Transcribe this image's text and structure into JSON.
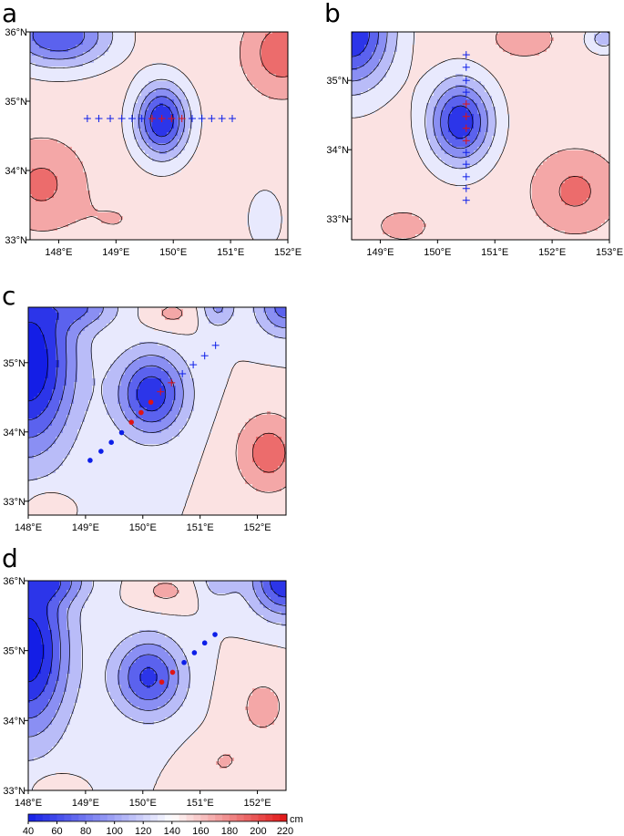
{
  "colors": {
    "blue": "#0c1ee8",
    "red": "#e01414",
    "frame": "#000000"
  },
  "panels": [
    {
      "letter": "a",
      "lon_range": [
        147.5,
        152.0
      ],
      "lat_range": [
        33.0,
        36.0
      ],
      "xticks": [
        {
          "v": 148,
          "label": "148°E"
        },
        {
          "v": 149,
          "label": "149°E"
        },
        {
          "v": 150,
          "label": "150°E"
        },
        {
          "v": 151,
          "label": "151°E"
        },
        {
          "v": 152,
          "label": "152°E"
        }
      ],
      "yticks": [
        {
          "v": 33,
          "label": "33°N"
        },
        {
          "v": 34,
          "label": "34°N"
        },
        {
          "v": 35,
          "label": "35°N"
        },
        {
          "v": 36,
          "label": "36°N"
        }
      ],
      "base_value": 150,
      "features": [
        {
          "lon": 149.8,
          "lat": 34.72,
          "value": 40,
          "rx": 0.45,
          "ry": 0.52
        },
        {
          "lon": 148.0,
          "lat": 35.95,
          "value": 60,
          "rx": 0.9,
          "ry": 0.45
        },
        {
          "lon": 147.7,
          "lat": 33.8,
          "value": 185,
          "rx": 0.7,
          "ry": 0.6
        },
        {
          "lon": 151.9,
          "lat": 35.7,
          "value": 195,
          "rx": 0.6,
          "ry": 0.55
        },
        {
          "lon": 151.6,
          "lat": 33.3,
          "value": 130,
          "rx": 0.35,
          "ry": 0.5
        },
        {
          "lon": 149.0,
          "lat": 33.3,
          "value": 160,
          "rx": 0.6,
          "ry": 0.35
        }
      ],
      "markers": [
        {
          "type": "plus",
          "color": "blue",
          "lon": 148.5,
          "lat": 34.75
        },
        {
          "type": "plus",
          "color": "blue",
          "lon": 148.7,
          "lat": 34.75
        },
        {
          "type": "plus",
          "color": "blue",
          "lon": 148.9,
          "lat": 34.75
        },
        {
          "type": "plus",
          "color": "blue",
          "lon": 149.1,
          "lat": 34.75
        },
        {
          "type": "plus",
          "color": "blue",
          "lon": 149.28,
          "lat": 34.75
        },
        {
          "type": "plus",
          "color": "blue",
          "lon": 149.45,
          "lat": 34.75
        },
        {
          "type": "plus",
          "color": "red",
          "lon": 149.63,
          "lat": 34.75
        },
        {
          "type": "plus",
          "color": "red",
          "lon": 149.8,
          "lat": 34.75
        },
        {
          "type": "plus",
          "color": "red",
          "lon": 149.97,
          "lat": 34.75
        },
        {
          "type": "plus",
          "color": "red",
          "lon": 150.15,
          "lat": 34.75
        },
        {
          "type": "plus",
          "color": "blue",
          "lon": 150.33,
          "lat": 34.75
        },
        {
          "type": "plus",
          "color": "blue",
          "lon": 150.5,
          "lat": 34.75
        },
        {
          "type": "plus",
          "color": "blue",
          "lon": 150.67,
          "lat": 34.75
        },
        {
          "type": "plus",
          "color": "blue",
          "lon": 150.85,
          "lat": 34.75
        },
        {
          "type": "plus",
          "color": "blue",
          "lon": 151.03,
          "lat": 34.75
        }
      ]
    },
    {
      "letter": "b",
      "lon_range": [
        148.5,
        153.0
      ],
      "lat_range": [
        32.7,
        35.7
      ],
      "xticks": [
        {
          "v": 149,
          "label": "149°E"
        },
        {
          "v": 150,
          "label": "150°E"
        },
        {
          "v": 151,
          "label": "151°E"
        },
        {
          "v": 152,
          "label": "152°E"
        },
        {
          "v": 153,
          "label": "153°E"
        }
      ],
      "yticks": [
        {
          "v": 33,
          "label": "33°N"
        },
        {
          "v": 34,
          "label": "34°N"
        },
        {
          "v": 35,
          "label": "35°N"
        }
      ],
      "base_value": 150,
      "features": [
        {
          "lon": 150.4,
          "lat": 34.4,
          "value": 45,
          "rx": 0.55,
          "ry": 0.6
        },
        {
          "lon": 148.5,
          "lat": 35.7,
          "value": 40,
          "rx": 0.7,
          "ry": 0.8
        },
        {
          "lon": 152.9,
          "lat": 35.6,
          "value": 110,
          "rx": 0.3,
          "ry": 0.2
        },
        {
          "lon": 152.4,
          "lat": 33.4,
          "value": 185,
          "rx": 0.7,
          "ry": 0.55
        },
        {
          "lon": 151.5,
          "lat": 35.6,
          "value": 170,
          "rx": 0.6,
          "ry": 0.3
        },
        {
          "lon": 149.4,
          "lat": 32.9,
          "value": 165,
          "rx": 0.6,
          "ry": 0.3
        }
      ],
      "markers": [
        {
          "type": "plus",
          "color": "blue",
          "lon": 150.5,
          "lat": 35.37
        },
        {
          "type": "plus",
          "color": "blue",
          "lon": 150.5,
          "lat": 35.19
        },
        {
          "type": "plus",
          "color": "blue",
          "lon": 150.5,
          "lat": 35.0
        },
        {
          "type": "plus",
          "color": "blue",
          "lon": 150.5,
          "lat": 34.83
        },
        {
          "type": "plus",
          "color": "red",
          "lon": 150.5,
          "lat": 34.66
        },
        {
          "type": "plus",
          "color": "red",
          "lon": 150.5,
          "lat": 34.48
        },
        {
          "type": "plus",
          "color": "red",
          "lon": 150.5,
          "lat": 34.31
        },
        {
          "type": "plus",
          "color": "red",
          "lon": 150.5,
          "lat": 34.13
        },
        {
          "type": "plus",
          "color": "blue",
          "lon": 150.5,
          "lat": 33.96
        },
        {
          "type": "plus",
          "color": "blue",
          "lon": 150.5,
          "lat": 33.79
        },
        {
          "type": "plus",
          "color": "blue",
          "lon": 150.5,
          "lat": 33.61
        },
        {
          "type": "plus",
          "color": "blue",
          "lon": 150.5,
          "lat": 33.44
        },
        {
          "type": "plus",
          "color": "blue",
          "lon": 150.5,
          "lat": 33.27
        }
      ]
    },
    {
      "letter": "c",
      "lon_range": [
        148.0,
        152.5
      ],
      "lat_range": [
        32.8,
        35.8
      ],
      "xticks": [
        {
          "v": 148,
          "label": "148°E"
        },
        {
          "v": 149,
          "label": "149°E"
        },
        {
          "v": 150,
          "label": "150°E"
        },
        {
          "v": 151,
          "label": "151°E"
        },
        {
          "v": 152,
          "label": "152°E"
        }
      ],
      "yticks": [
        {
          "v": 33,
          "label": "33°N"
        },
        {
          "v": 34,
          "label": "34°N"
        },
        {
          "v": 35,
          "label": "35°N"
        }
      ],
      "base_value": 140,
      "features": [
        {
          "lon": 150.15,
          "lat": 34.55,
          "value": 45,
          "rx": 0.6,
          "ry": 0.6
        },
        {
          "lon": 148.0,
          "lat": 35.0,
          "value": 20,
          "rx": 0.8,
          "ry": 1.3
        },
        {
          "lon": 149.0,
          "lat": 35.8,
          "value": 95,
          "rx": 0.6,
          "ry": 0.3
        },
        {
          "lon": 152.5,
          "lat": 35.8,
          "value": 70,
          "rx": 0.5,
          "ry": 0.4
        },
        {
          "lon": 151.3,
          "lat": 35.8,
          "value": 95,
          "rx": 0.3,
          "ry": 0.3
        },
        {
          "lon": 152.2,
          "lat": 33.7,
          "value": 190,
          "rx": 0.6,
          "ry": 0.6
        },
        {
          "lon": 150.5,
          "lat": 35.7,
          "value": 165,
          "rx": 0.5,
          "ry": 0.25
        },
        {
          "lon": 148.3,
          "lat": 32.95,
          "value": 160,
          "rx": 0.4,
          "ry": 0.25
        }
      ],
      "markers": [
        {
          "type": "plus",
          "color": "blue",
          "lon": 151.27,
          "lat": 35.25
        },
        {
          "type": "plus",
          "color": "blue",
          "lon": 151.08,
          "lat": 35.1
        },
        {
          "type": "plus",
          "color": "blue",
          "lon": 150.88,
          "lat": 34.97
        },
        {
          "type": "plus",
          "color": "blue",
          "lon": 150.69,
          "lat": 34.84
        },
        {
          "type": "plus",
          "color": "red",
          "lon": 150.5,
          "lat": 34.71
        },
        {
          "type": "plus",
          "color": "red",
          "lon": 150.31,
          "lat": 34.58
        },
        {
          "type": "dot",
          "color": "red",
          "lon": 150.14,
          "lat": 34.43
        },
        {
          "type": "dot",
          "color": "red",
          "lon": 149.97,
          "lat": 34.28
        },
        {
          "type": "dot",
          "color": "red",
          "lon": 149.8,
          "lat": 34.14
        },
        {
          "type": "dot",
          "color": "blue",
          "lon": 149.63,
          "lat": 33.99
        },
        {
          "type": "dot",
          "color": "blue",
          "lon": 149.45,
          "lat": 33.85
        },
        {
          "type": "dot",
          "color": "blue",
          "lon": 149.27,
          "lat": 33.72
        },
        {
          "type": "dot",
          "color": "blue",
          "lon": 149.08,
          "lat": 33.59
        }
      ]
    },
    {
      "letter": "d",
      "lon_range": [
        148.0,
        152.5
      ],
      "lat_range": [
        33.0,
        36.0
      ],
      "xticks": [
        {
          "v": 148,
          "label": "148°E"
        },
        {
          "v": 149,
          "label": "149°E"
        },
        {
          "v": 150,
          "label": "150°E"
        },
        {
          "v": 151,
          "label": "151°E"
        },
        {
          "v": 152,
          "label": "152°E"
        }
      ],
      "yticks": [
        {
          "v": 33,
          "label": "33°N"
        },
        {
          "v": 34,
          "label": "34°N"
        },
        {
          "v": 35,
          "label": "35°N"
        },
        {
          "v": 36,
          "label": "36°N"
        }
      ],
      "base_value": 140,
      "features": [
        {
          "lon": 150.1,
          "lat": 34.62,
          "value": 55,
          "rx": 0.6,
          "ry": 0.55
        },
        {
          "lon": 148.0,
          "lat": 35.0,
          "value": 25,
          "rx": 0.7,
          "ry": 1.2
        },
        {
          "lon": 148.5,
          "lat": 36.0,
          "value": 90,
          "rx": 0.6,
          "ry": 0.3
        },
        {
          "lon": 152.5,
          "lat": 36.0,
          "value": 40,
          "rx": 0.6,
          "ry": 0.5
        },
        {
          "lon": 151.3,
          "lat": 36.0,
          "value": 110,
          "rx": 0.35,
          "ry": 0.3
        },
        {
          "lon": 152.1,
          "lat": 34.2,
          "value": 165,
          "rx": 0.6,
          "ry": 0.6
        },
        {
          "lon": 150.4,
          "lat": 35.85,
          "value": 165,
          "rx": 0.5,
          "ry": 0.25
        },
        {
          "lon": 151.4,
          "lat": 33.4,
          "value": 160,
          "rx": 0.5,
          "ry": 0.35
        },
        {
          "lon": 148.4,
          "lat": 33.05,
          "value": 155,
          "rx": 0.4,
          "ry": 0.25
        }
      ],
      "markers": [
        {
          "type": "dot",
          "color": "blue",
          "lon": 151.26,
          "lat": 35.23
        },
        {
          "type": "dot",
          "color": "blue",
          "lon": 151.08,
          "lat": 35.11
        },
        {
          "type": "dot",
          "color": "blue",
          "lon": 150.9,
          "lat": 34.97
        },
        {
          "type": "dot",
          "color": "blue",
          "lon": 150.72,
          "lat": 34.83
        },
        {
          "type": "dot",
          "color": "red",
          "lon": 150.52,
          "lat": 34.69
        },
        {
          "type": "dot",
          "color": "red",
          "lon": 150.33,
          "lat": 34.55
        }
      ]
    }
  ],
  "colorbar": {
    "unit": "cm",
    "min": 40,
    "max": 220,
    "ticks": [
      "40",
      "60",
      "80",
      "100",
      "120",
      "140",
      "160",
      "180",
      "200",
      "220"
    ]
  }
}
